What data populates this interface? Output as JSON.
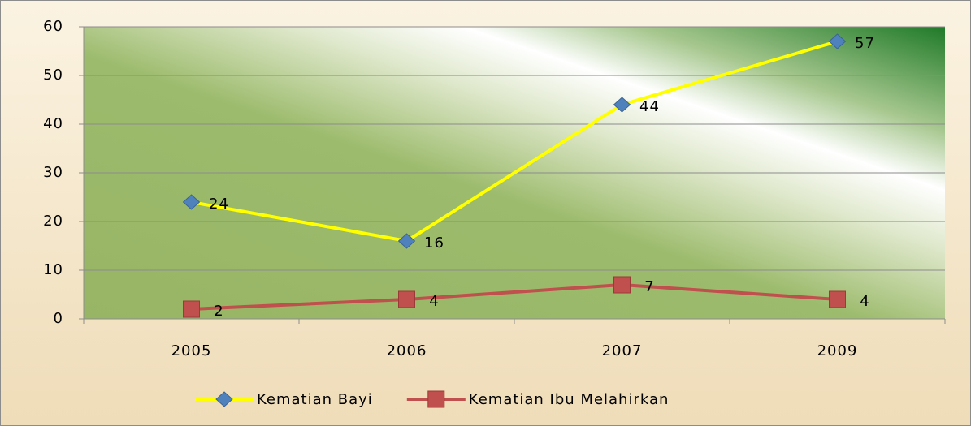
{
  "chart_data": {
    "type": "line",
    "categories": [
      "2005",
      "2006",
      "2007",
      "2009"
    ],
    "series": [
      {
        "name": "Kematian Bayi",
        "color": "#ffff00",
        "marker_color": "#4f81bd",
        "marker": "diamond",
        "values": [
          24,
          16,
          44,
          57
        ]
      },
      {
        "name": "Kematian Ibu Melahirkan",
        "color": "#c0504d",
        "marker_color": "#c0504d",
        "marker": "square",
        "values": [
          2,
          4,
          7,
          4
        ]
      }
    ],
    "ylim": [
      0,
      60
    ],
    "yticks": [
      0,
      10,
      20,
      30,
      40,
      50,
      60
    ],
    "grid": true,
    "legend": "bottom"
  }
}
